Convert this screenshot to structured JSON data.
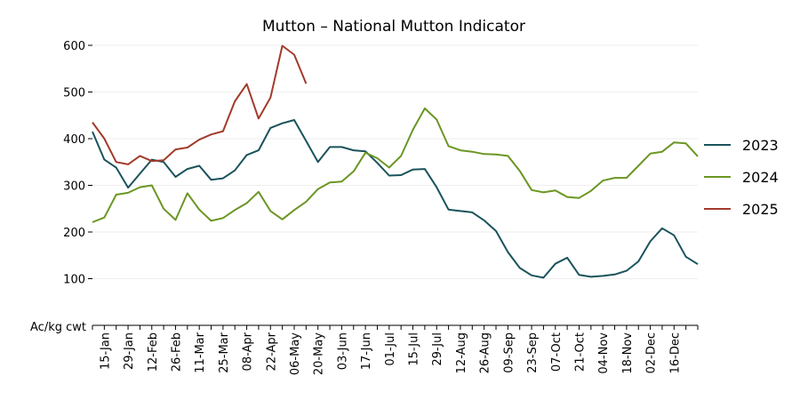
{
  "chart_data": {
    "type": "line",
    "title": "Mutton – National Mutton Indicator",
    "ylabel": "Ac/kg cwt",
    "xlabel": "",
    "ylim": [
      0,
      600
    ],
    "yticks": [
      100,
      200,
      300,
      400,
      500,
      600
    ],
    "grid": true,
    "legend": "right",
    "x_tick_labels": [
      "15-Jan",
      "29-Jan",
      "12-Feb",
      "26-Feb",
      "11-Mar",
      "25-Mar",
      "08-Apr",
      "22-Apr",
      "06-May",
      "20-May",
      "03-Jun",
      "17-Jun",
      "01-Jul",
      "15-Jul",
      "29-Jul",
      "12-Aug",
      "26-Aug",
      "09-Sep",
      "23-Sep",
      "07-Oct",
      "21-Oct",
      "04-Nov",
      "18-Nov",
      "02-Dec",
      "16-Dec"
    ],
    "series": [
      {
        "name": "2023",
        "color": "#1a535c",
        "values": [
          415,
          355,
          338,
          295,
          325,
          355,
          350,
          318,
          335,
          342,
          312,
          315,
          332,
          365,
          375,
          423,
          433,
          440,
          395,
          350,
          382,
          382,
          375,
          373,
          348,
          321,
          322,
          334,
          335,
          296,
          248,
          245,
          242,
          225,
          202,
          157,
          123,
          107,
          102,
          132,
          145,
          108,
          104,
          106,
          109,
          117,
          137,
          180,
          208,
          193,
          147,
          131
        ]
      },
      {
        "name": "2024",
        "color": "#6b9623",
        "values": [
          221,
          231,
          280,
          284,
          296,
          300,
          250,
          226,
          283,
          248,
          224,
          230,
          247,
          262,
          286,
          245,
          227,
          247,
          265,
          292,
          306,
          308,
          330,
          370,
          358,
          338,
          363,
          419,
          465,
          441,
          384,
          375,
          372,
          367,
          366,
          363,
          331,
          290,
          285,
          289,
          275,
          273,
          288,
          310,
          316,
          316,
          342,
          368,
          372,
          392,
          390,
          362
        ]
      },
      {
        "name": "2025",
        "color": "#a23b2c",
        "values": [
          435,
          400,
          350,
          345,
          363,
          352,
          354,
          377,
          381,
          398,
          409,
          416,
          480,
          517,
          443,
          488,
          599,
          580,
          518
        ]
      }
    ]
  }
}
